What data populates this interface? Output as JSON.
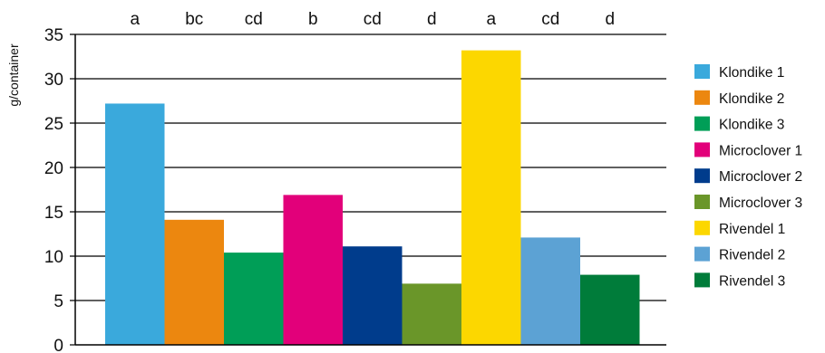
{
  "chart_data": {
    "type": "bar",
    "title": "",
    "xlabel": "",
    "ylabel": "g/container",
    "ylim": [
      0,
      35
    ],
    "yticks": [
      0,
      5,
      10,
      15,
      20,
      25,
      30,
      35
    ],
    "grid": true,
    "legend_position": "right",
    "categories": [
      "Klondike 1",
      "Klondike 2",
      "Klondike 3",
      "Microclover 1",
      "Microclover 2",
      "Microclover 3",
      "Rivendel 1",
      "Rivendel 2",
      "Rivendel 3"
    ],
    "values": [
      27.2,
      14.1,
      10.4,
      16.9,
      11.1,
      6.9,
      33.2,
      12.1,
      7.9
    ],
    "colors": [
      "#3aa9dc",
      "#ec870f",
      "#009e57",
      "#e2007a",
      "#003c8c",
      "#6a9629",
      "#fcd700",
      "#5ca2d4",
      "#007c3a"
    ],
    "significance_groups": [
      "a",
      "bc",
      "cd",
      "b",
      "cd",
      "d",
      "a",
      "cd",
      "d"
    ]
  }
}
